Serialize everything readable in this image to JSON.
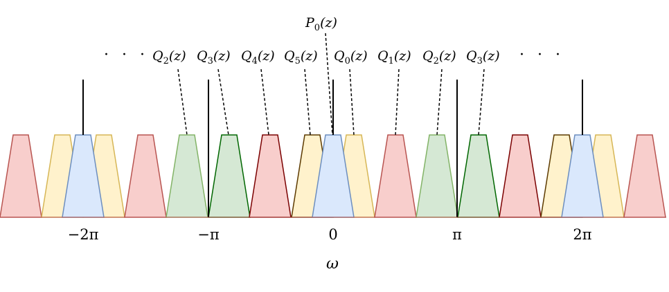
{
  "diagram": {
    "top_label": {
      "base": "P",
      "sub": "0",
      "arg": "(z)"
    },
    "ellipsis_left": "· · ·",
    "ellipsis_right": "· · ·",
    "filter_labels": [
      {
        "base": "Q",
        "sub": "2",
        "arg": "(z)"
      },
      {
        "base": "Q",
        "sub": "3",
        "arg": "(z)"
      },
      {
        "base": "Q",
        "sub": "4",
        "arg": "(z)"
      },
      {
        "base": "Q",
        "sub": "5",
        "arg": "(z)"
      },
      {
        "base": "Q",
        "sub": "0",
        "arg": "(z)"
      },
      {
        "base": "Q",
        "sub": "1",
        "arg": "(z)"
      },
      {
        "base": "Q",
        "sub": "2",
        "arg": "(z)"
      },
      {
        "base": "Q",
        "sub": "3",
        "arg": "(z)"
      }
    ],
    "axis_ticks": [
      "−2π",
      "−π",
      "0",
      "π",
      "2π"
    ],
    "axis_label": "ω",
    "colors": {
      "red": {
        "fill": "#f8cecc",
        "stroke": "#b85450"
      },
      "yellow": {
        "fill": "#fff2cc",
        "stroke": "#d6b656"
      },
      "blue": {
        "fill": "#dae8fc",
        "stroke": "#6c8ebf"
      },
      "green": {
        "fill": "#d5e8d4",
        "stroke": "#82b366"
      },
      "dark_green": {
        "fill": "#d5e8d4",
        "stroke": "#006600"
      },
      "dark_red": {
        "fill": "#f8cecc",
        "stroke": "#7a0000"
      },
      "brown": {
        "fill": "#fff2cc",
        "stroke": "#5c3a00"
      }
    },
    "bands": [
      {
        "name": "band-red",
        "color": "red"
      },
      {
        "name": "band-yellow",
        "color": "yellow"
      },
      {
        "name": "band-yellow",
        "color": "yellow"
      },
      {
        "name": "band-blue",
        "color": "blue"
      },
      {
        "name": "band-red",
        "color": "red"
      },
      {
        "name": "band-green",
        "color": "green"
      },
      {
        "name": "band-dark-green",
        "color": "dark_green"
      },
      {
        "name": "band-dark-red",
        "color": "dark_red"
      },
      {
        "name": "band-brown",
        "color": "brown"
      },
      {
        "name": "band-yellow",
        "color": "yellow"
      },
      {
        "name": "band-blue",
        "color": "blue"
      },
      {
        "name": "band-red",
        "color": "red"
      },
      {
        "name": "band-green",
        "color": "green"
      },
      {
        "name": "band-dark-green",
        "color": "dark_green"
      },
      {
        "name": "band-dark-red",
        "color": "dark_red"
      },
      {
        "name": "band-brown",
        "color": "brown"
      },
      {
        "name": "band-yellow",
        "color": "yellow"
      },
      {
        "name": "band-blue",
        "color": "blue"
      },
      {
        "name": "band-red",
        "color": "red"
      }
    ]
  }
}
